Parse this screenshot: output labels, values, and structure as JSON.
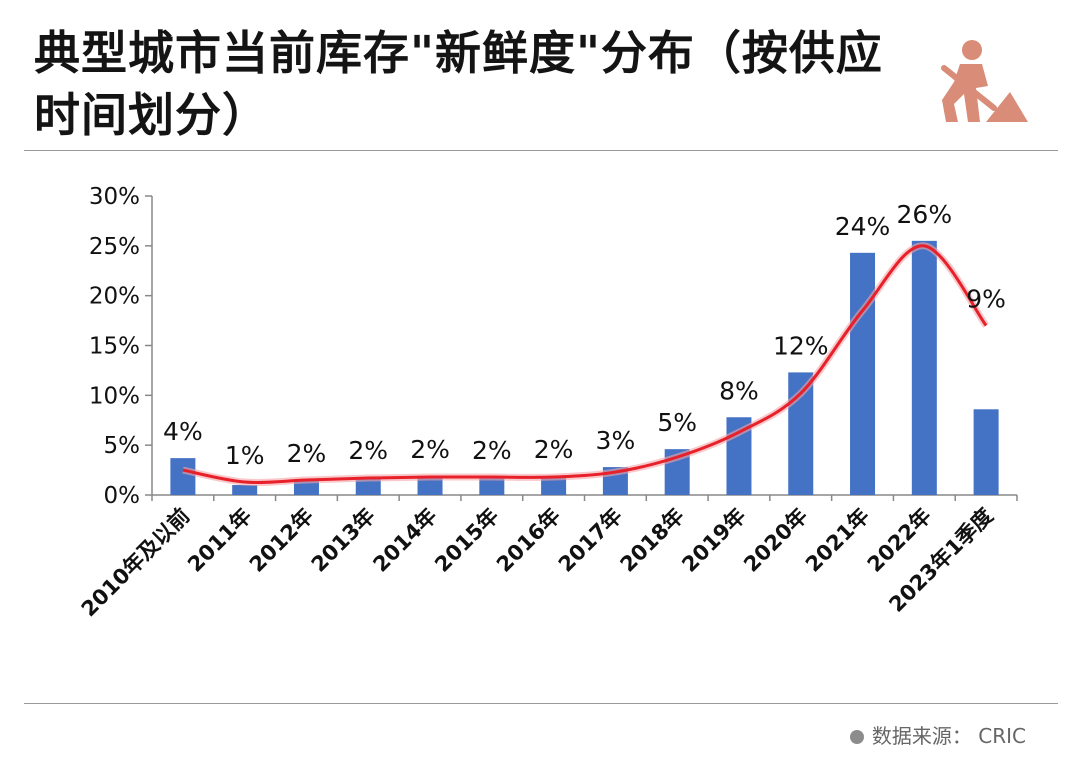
{
  "title": "典型城市当前库存\"新鲜度\"分布（按供应时间划分）",
  "source": {
    "text": "数据来源： CRIC"
  },
  "icon": "worker-digging-icon",
  "colors": {
    "bar": "#4472c4",
    "line": "#e8202a",
    "icon": "#d98c77"
  },
  "chart_data": {
    "type": "bar",
    "categories": [
      "2010年及以前",
      "2011年",
      "2012年",
      "2013年",
      "2014年",
      "2015年",
      "2016年",
      "2017年",
      "2018年",
      "2019年",
      "2020年",
      "2021年",
      "2022年",
      "2023年1季度"
    ],
    "values": [
      3.7,
      1.0,
      1.5,
      1.8,
      1.9,
      1.8,
      1.9,
      2.8,
      4.6,
      7.8,
      12.3,
      24.3,
      25.5,
      8.6
    ],
    "data_labels": [
      "4%",
      "1%",
      "2%",
      "2%",
      "2%",
      "2%",
      "2%",
      "3%",
      "5%",
      "8%",
      "12%",
      "24%",
      "26%",
      "9%"
    ],
    "trend_line": [
      2.5,
      1.3,
      1.5,
      1.7,
      1.8,
      1.8,
      1.8,
      2.3,
      3.8,
      6.3,
      10.2,
      18.5,
      25.0,
      17.0
    ],
    "yticks": [
      "0%",
      "5%",
      "10%",
      "15%",
      "20%",
      "25%",
      "30%"
    ],
    "ylim": [
      0,
      30
    ],
    "grid": false,
    "legend": "none"
  }
}
